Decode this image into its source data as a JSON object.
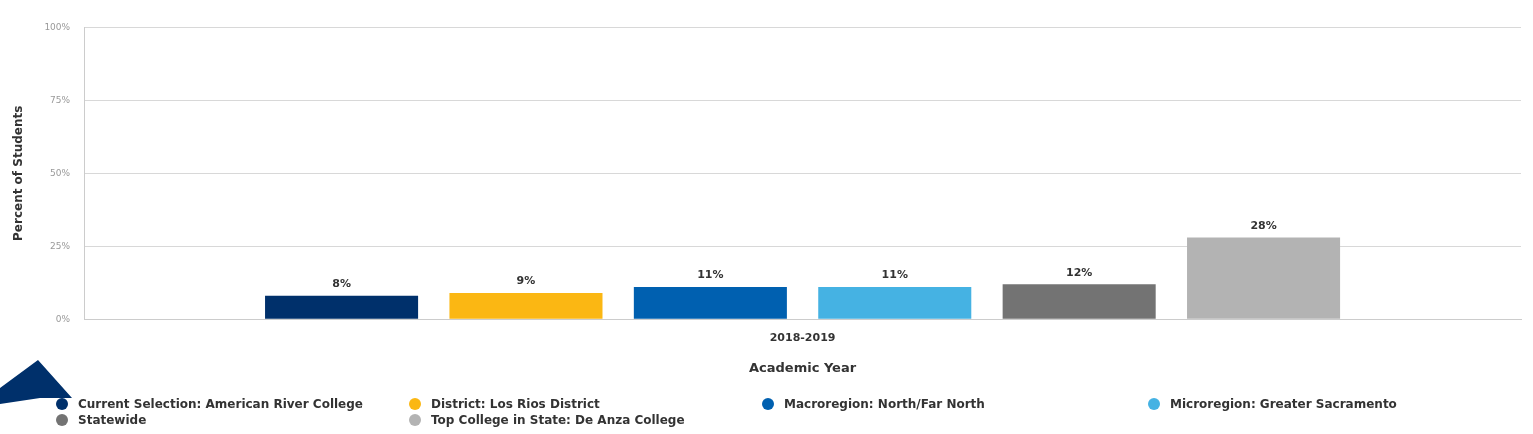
{
  "chart_data": {
    "type": "bar",
    "xlabel": "Academic Year",
    "ylabel": "Percent of Students",
    "categories": [
      "2018-2019"
    ],
    "series": [
      {
        "name": "Current Selection: American River College",
        "color": "#00306b",
        "values": [
          8
        ],
        "value_labels": [
          "8%"
        ]
      },
      {
        "name": "District: Los Rios District",
        "color": "#fbb713",
        "values": [
          9
        ],
        "value_labels": [
          "9%"
        ]
      },
      {
        "name": "Macroregion: North/Far North",
        "color": "#0060b0",
        "values": [
          11
        ],
        "value_labels": [
          "11%"
        ]
      },
      {
        "name": "Microregion: Greater Sacramento",
        "color": "#45b2e3",
        "values": [
          11
        ],
        "value_labels": [
          "11%"
        ]
      },
      {
        "name": "Statewide",
        "color": "#737373",
        "values": [
          12
        ],
        "value_labels": [
          "12%"
        ]
      },
      {
        "name": "Top College in State: De Anza College",
        "color": "#b3b3b3",
        "values": [
          28
        ],
        "value_labels": [
          "28%"
        ]
      }
    ],
    "ylim": [
      0,
      100
    ],
    "yticks": [
      {
        "value": 0,
        "label": "0%"
      },
      {
        "value": 25,
        "label": "25%"
      },
      {
        "value": 50,
        "label": "50%"
      },
      {
        "value": 75,
        "label": "75%"
      },
      {
        "value": 100,
        "label": "100%"
      }
    ],
    "grid": "y",
    "legend": "bottom"
  }
}
